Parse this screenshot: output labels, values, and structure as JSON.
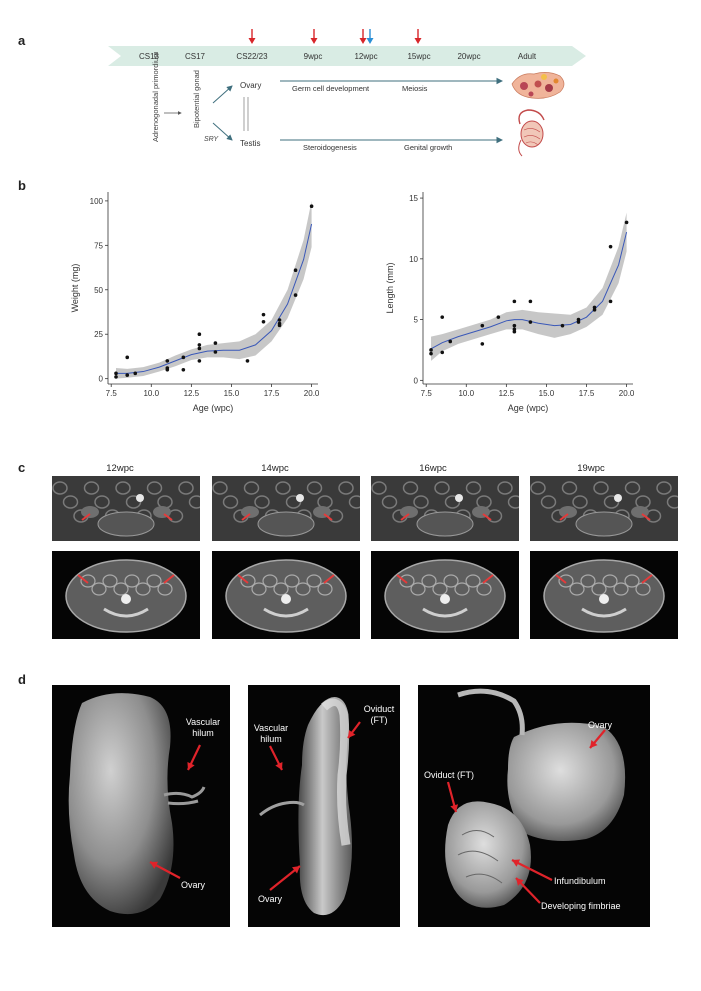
{
  "panel_labels": {
    "a": "a",
    "b": "b",
    "c": "c",
    "d": "d"
  },
  "timeline": {
    "stages": [
      "CS13",
      "CS17",
      "CS22/23",
      "9wpc",
      "12wpc",
      "15wpc",
      "20wpc",
      "Adult"
    ],
    "red_arrow_stages": [
      "CS22/23",
      "9wpc",
      "12wpc",
      "15wpc"
    ],
    "blue_arrow_stages": [
      "12wpc"
    ],
    "arrow_color": "#d8262a",
    "blue_arrow_color": "#2a8fd6",
    "band_color": "#d9ece4"
  },
  "lineage": {
    "origin": "Adrenogonadal primordium",
    "bipotential": "Bipotential gonad",
    "sry": "SRY",
    "ovary": "Ovary",
    "testis": "Testis",
    "ovary_process_1": "Germ cell development",
    "ovary_process_2": "Meiosis",
    "testis_process_1": "Steroidogenesis",
    "testis_process_2": "Genital growth"
  },
  "chart_data": [
    {
      "type": "scatter",
      "ylabel": "Weight (mg)",
      "xlabel": "Age (wpc)",
      "xlim": [
        7.3,
        20.4
      ],
      "ylim": [
        -3,
        105
      ],
      "xticks": [
        7.5,
        10.0,
        12.5,
        15.0,
        17.5,
        20.0
      ],
      "xtick_labels": [
        "7.5",
        "10.0",
        "12.5",
        "15.0",
        "17.5",
        "20.0"
      ],
      "yticks": [
        0,
        25,
        50,
        75,
        100
      ],
      "ytick_labels": [
        "0",
        "25",
        "50",
        "75",
        "100"
      ],
      "points": [
        [
          7.8,
          3
        ],
        [
          7.8,
          1
        ],
        [
          8.5,
          12
        ],
        [
          8.5,
          2
        ],
        [
          9.0,
          3
        ],
        [
          11.0,
          10
        ],
        [
          11.0,
          6
        ],
        [
          11.0,
          5
        ],
        [
          12.0,
          12
        ],
        [
          12.0,
          5
        ],
        [
          13.0,
          25
        ],
        [
          13.0,
          19
        ],
        [
          13.0,
          17
        ],
        [
          13.0,
          10
        ],
        [
          14.0,
          20
        ],
        [
          14.0,
          15
        ],
        [
          16.0,
          10
        ],
        [
          17.0,
          36
        ],
        [
          17.0,
          32
        ],
        [
          18.0,
          33
        ],
        [
          18.0,
          31
        ],
        [
          18.0,
          30
        ],
        [
          19.0,
          61
        ],
        [
          19.0,
          47
        ],
        [
          20.0,
          97
        ]
      ],
      "fit": [
        [
          7.8,
          3
        ],
        [
          8.5,
          3
        ],
        [
          9.5,
          4
        ],
        [
          10.5,
          6.5
        ],
        [
          11.5,
          10
        ],
        [
          12.5,
          13.5
        ],
        [
          13.5,
          15.5
        ],
        [
          14.5,
          16
        ],
        [
          15.5,
          16
        ],
        [
          16.5,
          19
        ],
        [
          17.5,
          27
        ],
        [
          18.5,
          42
        ],
        [
          19.5,
          67
        ],
        [
          20.0,
          87
        ]
      ],
      "band_upper": [
        [
          7.8,
          6
        ],
        [
          8.5,
          5.5
        ],
        [
          9.5,
          6.5
        ],
        [
          10.5,
          9
        ],
        [
          11.5,
          13
        ],
        [
          12.5,
          16.5
        ],
        [
          13.5,
          19
        ],
        [
          14.5,
          20
        ],
        [
          15.5,
          21
        ],
        [
          16.5,
          25
        ],
        [
          17.5,
          33
        ],
        [
          18.5,
          50
        ],
        [
          19.5,
          78
        ],
        [
          20.0,
          100
        ]
      ],
      "band_lower": [
        [
          7.8,
          0
        ],
        [
          8.5,
          0.5
        ],
        [
          9.5,
          1.5
        ],
        [
          10.5,
          4
        ],
        [
          11.5,
          7
        ],
        [
          12.5,
          10.5
        ],
        [
          13.5,
          12
        ],
        [
          14.5,
          12
        ],
        [
          15.5,
          11
        ],
        [
          16.5,
          13
        ],
        [
          17.5,
          21
        ],
        [
          18.5,
          34
        ],
        [
          19.5,
          56
        ],
        [
          20.0,
          74
        ]
      ]
    },
    {
      "type": "scatter",
      "ylabel": "Length (mm)",
      "xlabel": "Age (wpc)",
      "xlim": [
        7.3,
        20.4
      ],
      "ylim": [
        -0.3,
        15.5
      ],
      "xticks": [
        7.5,
        10.0,
        12.5,
        15.0,
        17.5,
        20.0
      ],
      "xtick_labels": [
        "7.5",
        "10.0",
        "12.5",
        "15.0",
        "17.5",
        "20.0"
      ],
      "yticks": [
        0,
        5,
        10,
        15
      ],
      "ytick_labels": [
        "0",
        "5",
        "10",
        "15"
      ],
      "points": [
        [
          7.8,
          2.5
        ],
        [
          7.8,
          2.2
        ],
        [
          8.5,
          5.2
        ],
        [
          8.5,
          2.3
        ],
        [
          9.0,
          3.2
        ],
        [
          11.0,
          4.5
        ],
        [
          11.0,
          3.0
        ],
        [
          12.0,
          5.2
        ],
        [
          13.0,
          6.5
        ],
        [
          13.0,
          4.5
        ],
        [
          13.0,
          4.2
        ],
        [
          13.0,
          4.0
        ],
        [
          14.0,
          6.5
        ],
        [
          14.0,
          4.8
        ],
        [
          16.0,
          4.5
        ],
        [
          17.0,
          5.0
        ],
        [
          17.0,
          4.8
        ],
        [
          18.0,
          6.0
        ],
        [
          18.0,
          5.8
        ],
        [
          19.0,
          11.0
        ],
        [
          19.0,
          6.5
        ],
        [
          20.0,
          13.0
        ]
      ],
      "fit": [
        [
          7.8,
          2.6
        ],
        [
          8.5,
          3.1
        ],
        [
          9.5,
          3.6
        ],
        [
          10.5,
          4.0
        ],
        [
          11.5,
          4.4
        ],
        [
          12.5,
          4.9
        ],
        [
          13.0,
          5.0
        ],
        [
          13.5,
          5.0
        ],
        [
          14.5,
          4.7
        ],
        [
          15.5,
          4.5
        ],
        [
          16.5,
          4.6
        ],
        [
          17.5,
          5.2
        ],
        [
          18.5,
          6.5
        ],
        [
          19.5,
          9.5
        ],
        [
          20.0,
          12.2
        ]
      ],
      "band_upper": [
        [
          7.8,
          3.6
        ],
        [
          8.5,
          3.8
        ],
        [
          9.5,
          4.2
        ],
        [
          10.5,
          4.6
        ],
        [
          11.5,
          5.0
        ],
        [
          12.5,
          5.6
        ],
        [
          13.5,
          5.8
        ],
        [
          14.5,
          5.6
        ],
        [
          15.5,
          5.5
        ],
        [
          16.5,
          5.4
        ],
        [
          17.5,
          6.0
        ],
        [
          18.5,
          7.6
        ],
        [
          19.5,
          11.0
        ],
        [
          20.0,
          13.8
        ]
      ],
      "band_lower": [
        [
          7.8,
          1.6
        ],
        [
          8.5,
          2.4
        ],
        [
          9.5,
          3.0
        ],
        [
          10.5,
          3.4
        ],
        [
          11.5,
          3.8
        ],
        [
          12.5,
          4.2
        ],
        [
          13.5,
          4.2
        ],
        [
          14.5,
          3.8
        ],
        [
          15.5,
          3.5
        ],
        [
          16.5,
          3.8
        ],
        [
          17.5,
          4.4
        ],
        [
          18.5,
          5.4
        ],
        [
          19.5,
          8.0
        ],
        [
          20.0,
          10.6
        ]
      ]
    }
  ],
  "chart_style": {
    "fit_color": "#3a58b8",
    "band_color": "#bdbdbd",
    "point_color": "#111111"
  },
  "panel_c": {
    "columns": [
      "12wpc",
      "14wpc",
      "16wpc",
      "19wpc"
    ],
    "arrow_color": "#e53a3a"
  },
  "panel_d": {
    "left": {
      "vascular_hilum": "Vascular hilum",
      "ovary": "Ovary"
    },
    "middle": {
      "vascular_hilum": "Vascular hilum",
      "oviduct": "Oviduct (FT)",
      "ovary": "Ovary"
    },
    "right": {
      "ovary": "Ovary",
      "oviduct": "Oviduct (FT)",
      "infundibulum": "Infundibulum",
      "fimbriae": "Developing fimbriae"
    },
    "arrow_color": "#e0232a"
  }
}
